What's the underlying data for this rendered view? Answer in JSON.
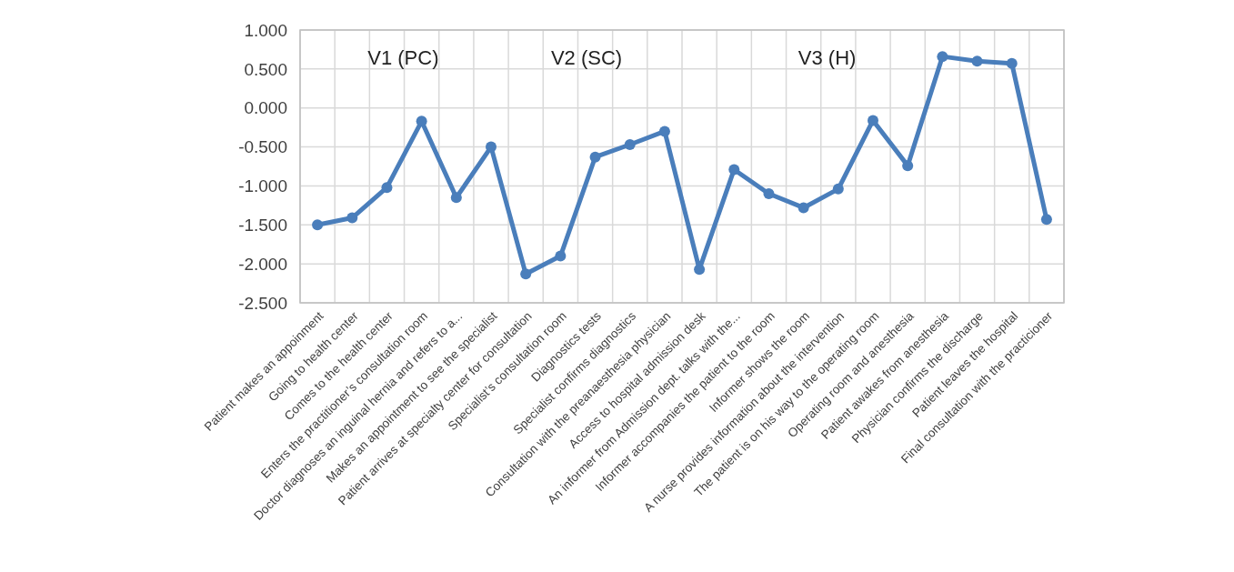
{
  "chart_data": {
    "type": "line",
    "categories": [
      "Patient makes an appoinment",
      "Going to health center",
      "Comes to the health center",
      "Enters the practitioner’s consultation room",
      "Doctor diagnoses an inguinal hernia and refers to a...",
      "Makes an appointment to see the specialist",
      "Patient arrives at specialty center for consultation",
      "Specialist’s consultation room",
      "Diagnostics tests",
      "Specialist confirms diagnostics",
      "Consultation with the preanaesthesia physician",
      "Access to hospital admission desk",
      "An informer from Admission dept. talks with the...",
      "Informer accompanies the patient to the room",
      "Informer shows the room",
      "A nurse provides information about the intervention",
      "The patient is on his way to the operating room",
      "Operating room and anesthesia",
      "Patient awakes from anesthesia",
      "Physician confirms the discharge",
      "Patient leaves the hospital",
      "Final consultation with the practicioner"
    ],
    "series": [
      {
        "color": "#4a7ebb",
        "values": [
          -1.5,
          -1.41,
          -1.02,
          -0.17,
          -1.15,
          -0.5,
          -2.13,
          -1.9,
          -0.63,
          -0.47,
          -0.3,
          -2.07,
          -0.79,
          -1.1,
          -1.28,
          -1.04,
          -0.16,
          -0.74,
          0.66,
          0.6,
          0.57,
          -1.43
        ]
      }
    ],
    "ylim": [
      -2.5,
      1
    ],
    "yticks": [
      {
        "value": -2.5,
        "label": "-2.500"
      },
      {
        "value": -2,
        "label": "-2.000"
      },
      {
        "value": -1.5,
        "label": "-1.500"
      },
      {
        "value": -1,
        "label": "-1.000"
      },
      {
        "value": -0.5,
        "label": "-0.500"
      },
      {
        "value": 0,
        "label": "0.000"
      },
      {
        "value": 0.5,
        "label": "0.500"
      },
      {
        "value": 1,
        "label": "1.000"
      }
    ],
    "annotations": [
      "V1 (PC)",
      "V2 (SC)",
      "V3 (H)"
    ],
    "grid": true,
    "marker": "circle",
    "line_style": "solid"
  }
}
